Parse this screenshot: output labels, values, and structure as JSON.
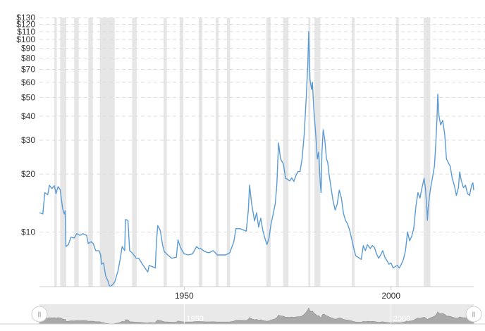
{
  "chart_data": {
    "type": "line",
    "title": "",
    "xlabel": "",
    "ylabel": "",
    "y_scale": "log",
    "ylim": [
      5.2,
      130
    ],
    "xlim": [
      1915,
      2020
    ],
    "y_ticks": [
      {
        "label": "$130",
        "value": 130
      },
      {
        "label": "$120",
        "value": 120
      },
      {
        "label": "$110",
        "value": 110
      },
      {
        "label": "$100",
        "value": 100
      },
      {
        "label": "$90",
        "value": 90
      },
      {
        "label": "$80",
        "value": 80
      },
      {
        "label": "$70",
        "value": 70
      },
      {
        "label": "$60",
        "value": 60
      },
      {
        "label": "$50",
        "value": 50
      },
      {
        "label": "$40",
        "value": 40
      },
      {
        "label": "$30",
        "value": 30
      },
      {
        "label": "$20",
        "value": 20
      },
      {
        "label": "$10",
        "value": 10
      }
    ],
    "x_ticks": [
      {
        "label": "1950",
        "value": 1950
      },
      {
        "label": "2000",
        "value": 2000
      }
    ],
    "grid": "horizontal dashed",
    "recession_bands": [
      [
        1918.6,
        1919.2
      ],
      [
        1920.0,
        1921.5
      ],
      [
        1923.4,
        1924.5
      ],
      [
        1926.8,
        1927.9
      ],
      [
        1929.6,
        1933.2
      ],
      [
        1937.4,
        1938.5
      ],
      [
        1945.0,
        1945.8
      ],
      [
        1948.9,
        1949.8
      ],
      [
        1953.5,
        1954.4
      ],
      [
        1957.6,
        1958.3
      ],
      [
        1960.3,
        1961.1
      ],
      [
        1969.9,
        1970.9
      ],
      [
        1973.9,
        1975.2
      ],
      [
        1980.0,
        1980.5
      ],
      [
        1981.5,
        1982.9
      ],
      [
        1990.5,
        1991.2
      ],
      [
        2001.2,
        2001.9
      ],
      [
        2007.9,
        2009.5
      ]
    ],
    "series": [
      {
        "name": "",
        "color": "#5b9bd5",
        "points": [
          [
            1915.0,
            12.6
          ],
          [
            1915.8,
            12.4
          ],
          [
            1916.3,
            16.0
          ],
          [
            1917.0,
            15.6
          ],
          [
            1917.4,
            17.5
          ],
          [
            1918.0,
            16.8
          ],
          [
            1918.6,
            17.4
          ],
          [
            1919.0,
            15.8
          ],
          [
            1919.5,
            17.2
          ],
          [
            1920.0,
            16.6
          ],
          [
            1920.6,
            13.2
          ],
          [
            1921.0,
            12.4
          ],
          [
            1921.2,
            12.9
          ],
          [
            1921.4,
            8.4
          ],
          [
            1922.0,
            8.6
          ],
          [
            1922.6,
            9.4
          ],
          [
            1923.4,
            9.3
          ],
          [
            1924.0,
            9.8
          ],
          [
            1924.8,
            9.6
          ],
          [
            1925.5,
            9.8
          ],
          [
            1926.4,
            9.6
          ],
          [
            1926.8,
            8.7
          ],
          [
            1927.5,
            8.9
          ],
          [
            1928.0,
            8.7
          ],
          [
            1928.6,
            8.0
          ],
          [
            1929.4,
            8.0
          ],
          [
            1929.8,
            7.6
          ],
          [
            1930.0,
            6.8
          ],
          [
            1930.5,
            6.9
          ],
          [
            1931.0,
            5.9
          ],
          [
            1931.5,
            5.6
          ],
          [
            1932.0,
            5.2
          ],
          [
            1932.6,
            5.3
          ],
          [
            1933.2,
            5.5
          ],
          [
            1934.0,
            6.3
          ],
          [
            1934.5,
            7.2
          ],
          [
            1935.0,
            8.4
          ],
          [
            1935.6,
            8.0
          ],
          [
            1935.8,
            11.6
          ],
          [
            1936.4,
            11.5
          ],
          [
            1936.8,
            8.0
          ],
          [
            1937.6,
            7.7
          ],
          [
            1938.4,
            7.3
          ],
          [
            1939.0,
            7.3
          ],
          [
            1939.7,
            6.9
          ],
          [
            1940.5,
            6.5
          ],
          [
            1941.2,
            6.2
          ],
          [
            1941.5,
            6.7
          ],
          [
            1942.3,
            6.6
          ],
          [
            1943.0,
            6.5
          ],
          [
            1943.3,
            9.0
          ],
          [
            1943.6,
            10.8
          ],
          [
            1944.2,
            10.2
          ],
          [
            1944.8,
            8.5
          ],
          [
            1945.2,
            7.9
          ],
          [
            1946.0,
            7.6
          ],
          [
            1947.0,
            7.3
          ],
          [
            1948.1,
            7.4
          ],
          [
            1948.5,
            9.1
          ],
          [
            1949.0,
            8.4
          ],
          [
            1949.5,
            8.0
          ],
          [
            1950.0,
            7.7
          ],
          [
            1951.0,
            7.6
          ],
          [
            1952.0,
            7.7
          ],
          [
            1953.0,
            8.4
          ],
          [
            1953.5,
            8.2
          ],
          [
            1954.0,
            8.2
          ],
          [
            1955.0,
            7.9
          ],
          [
            1956.0,
            7.8
          ],
          [
            1957.0,
            8.0
          ],
          [
            1958.0,
            7.6
          ],
          [
            1959.0,
            7.6
          ],
          [
            1960.0,
            7.6
          ],
          [
            1961.0,
            7.8
          ],
          [
            1962.0,
            8.9
          ],
          [
            1962.5,
            10.4
          ],
          [
            1963.5,
            10.4
          ],
          [
            1964.5,
            10.2
          ],
          [
            1965.0,
            10.1
          ],
          [
            1965.5,
            13.0
          ],
          [
            1965.8,
            17.5
          ],
          [
            1966.3,
            14.0
          ],
          [
            1967.0,
            11.4
          ],
          [
            1967.5,
            12.6
          ],
          [
            1968.0,
            10.6
          ],
          [
            1968.5,
            11.8
          ],
          [
            1969.0,
            10.2
          ],
          [
            1969.5,
            9.3
          ],
          [
            1970.0,
            8.6
          ],
          [
            1970.5,
            9.3
          ],
          [
            1971.0,
            11.0
          ],
          [
            1971.5,
            12.4
          ],
          [
            1972.0,
            14.0
          ],
          [
            1972.4,
            17.5
          ],
          [
            1972.8,
            29.0
          ],
          [
            1973.3,
            24.0
          ],
          [
            1974.0,
            22.5
          ],
          [
            1974.5,
            19.0
          ],
          [
            1975.0,
            18.8
          ],
          [
            1975.5,
            18.4
          ],
          [
            1976.0,
            19.1
          ],
          [
            1976.5,
            18.3
          ],
          [
            1977.0,
            19.6
          ],
          [
            1977.5,
            20.6
          ],
          [
            1978.0,
            20.6
          ],
          [
            1978.5,
            24.0
          ],
          [
            1979.0,
            32.0
          ],
          [
            1979.5,
            50.0
          ],
          [
            1979.9,
            75.0
          ],
          [
            1980.1,
            110.0
          ],
          [
            1980.4,
            62.0
          ],
          [
            1980.8,
            55.0
          ],
          [
            1981.0,
            60.0
          ],
          [
            1981.3,
            44.0
          ],
          [
            1981.8,
            32.0
          ],
          [
            1982.2,
            24.0
          ],
          [
            1982.5,
            26.0
          ],
          [
            1982.9,
            18.0
          ],
          [
            1983.1,
            16.0
          ],
          [
            1983.3,
            26.0
          ],
          [
            1983.6,
            34.0
          ],
          [
            1984.0,
            30.0
          ],
          [
            1984.4,
            24.0
          ],
          [
            1984.7,
            23.0
          ],
          [
            1985.0,
            20.0
          ],
          [
            1985.5,
            17.0
          ],
          [
            1986.0,
            14.5
          ],
          [
            1986.5,
            13.0
          ],
          [
            1987.0,
            14.0
          ],
          [
            1987.5,
            16.5
          ],
          [
            1988.0,
            15.0
          ],
          [
            1988.5,
            12.5
          ],
          [
            1989.0,
            11.5
          ],
          [
            1989.5,
            11.0
          ],
          [
            1990.0,
            10.2
          ],
          [
            1990.5,
            9.2
          ],
          [
            1991.0,
            8.2
          ],
          [
            1991.5,
            7.5
          ],
          [
            1992.0,
            7.4
          ],
          [
            1992.8,
            7.2
          ],
          [
            1993.3,
            8.5
          ],
          [
            1993.8,
            8.0
          ],
          [
            1994.3,
            8.6
          ],
          [
            1995.0,
            8.2
          ],
          [
            1995.5,
            8.5
          ],
          [
            1996.0,
            8.3
          ],
          [
            1996.5,
            7.7
          ],
          [
            1997.0,
            7.3
          ],
          [
            1997.5,
            7.6
          ],
          [
            1998.0,
            8.0
          ],
          [
            1998.5,
            7.4
          ],
          [
            1999.0,
            7.1
          ],
          [
            1999.5,
            6.8
          ],
          [
            2000.0,
            6.9
          ],
          [
            2000.5,
            6.5
          ],
          [
            2001.0,
            6.6
          ],
          [
            2001.5,
            6.7
          ],
          [
            2002.0,
            6.5
          ],
          [
            2002.5,
            6.8
          ],
          [
            2003.0,
            7.2
          ],
          [
            2003.5,
            8.0
          ],
          [
            2004.0,
            10.0
          ],
          [
            2004.5,
            9.0
          ],
          [
            2005.0,
            9.5
          ],
          [
            2005.5,
            10.4
          ],
          [
            2006.0,
            13.5
          ],
          [
            2006.5,
            16.0
          ],
          [
            2007.0,
            15.0
          ],
          [
            2007.5,
            17.0
          ],
          [
            2008.0,
            19.0
          ],
          [
            2008.3,
            17.0
          ],
          [
            2008.6,
            14.0
          ],
          [
            2008.8,
            11.5
          ],
          [
            2009.0,
            13.5
          ],
          [
            2009.5,
            16.5
          ],
          [
            2010.0,
            19.0
          ],
          [
            2010.5,
            22.0
          ],
          [
            2010.8,
            28.0
          ],
          [
            2011.1,
            38.0
          ],
          [
            2011.3,
            52.0
          ],
          [
            2011.6,
            40.0
          ],
          [
            2012.0,
            36.0
          ],
          [
            2012.5,
            38.0
          ],
          [
            2013.0,
            32.0
          ],
          [
            2013.4,
            24.0
          ],
          [
            2013.8,
            23.0
          ],
          [
            2014.3,
            22.0
          ],
          [
            2014.8,
            19.0
          ],
          [
            2015.3,
            17.5
          ],
          [
            2015.8,
            15.5
          ],
          [
            2016.3,
            17.0
          ],
          [
            2016.6,
            20.5
          ],
          [
            2017.0,
            18.5
          ],
          [
            2017.5,
            17.0
          ],
          [
            2018.0,
            17.5
          ],
          [
            2018.5,
            15.8
          ],
          [
            2019.0,
            15.5
          ],
          [
            2019.5,
            17.5
          ],
          [
            2019.8,
            18.0
          ],
          [
            2020.0,
            16.5
          ]
        ]
      }
    ],
    "navigator": {
      "x_ticks": [
        {
          "label": "1950",
          "value": 1950
        },
        {
          "label": "2000",
          "value": 2000
        }
      ],
      "left_handle_glyph": "ll",
      "right_handle_glyph": "ll"
    }
  }
}
